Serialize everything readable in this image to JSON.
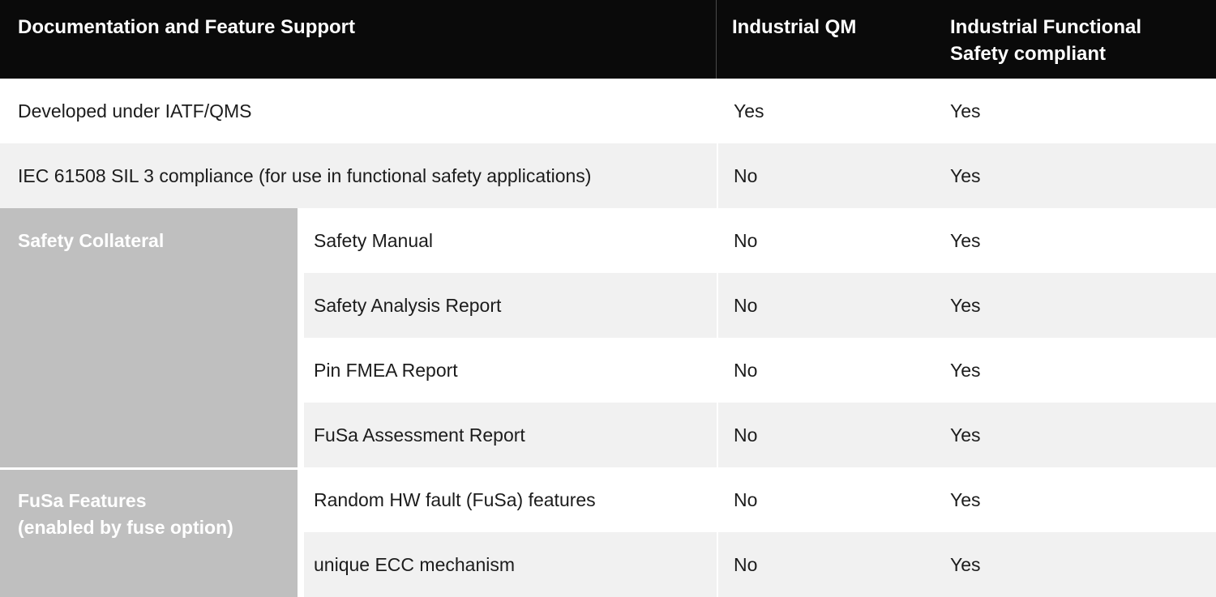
{
  "header": {
    "feature_col": "Documentation and Feature Support",
    "qm_col": "Industrial QM",
    "fusa_col_lines": [
      "Industrial Functional",
      "Safety compliant"
    ]
  },
  "rows": [
    {
      "label": "Developed under IATF/QMS",
      "industrial_qm": "Yes",
      "fusa_compliant": "Yes"
    },
    {
      "label": "IEC 61508 SIL 3 compliance (for use in functional safety applications)",
      "industrial_qm": "No",
      "fusa_compliant": "Yes"
    }
  ],
  "groups": [
    {
      "label_lines": [
        "Safety Collateral"
      ],
      "rows": [
        {
          "label": "Safety Manual",
          "industrial_qm": "No",
          "fusa_compliant": "Yes"
        },
        {
          "label": "Safety Analysis Report",
          "industrial_qm": "No",
          "fusa_compliant": "Yes"
        },
        {
          "label": "Pin FMEA Report",
          "industrial_qm": "No",
          "fusa_compliant": "Yes"
        },
        {
          "label": "FuSa Assessment Report",
          "industrial_qm": "No",
          "fusa_compliant": "Yes"
        }
      ]
    },
    {
      "label_lines": [
        "FuSa Features",
        "(enabled by fuse option)"
      ],
      "rows": [
        {
          "label": "Random HW fault (FuSa) features",
          "industrial_qm": "No",
          "fusa_compliant": "Yes"
        },
        {
          "label": "unique ECC mechanism",
          "industrial_qm": "No",
          "fusa_compliant": "Yes"
        }
      ]
    }
  ],
  "colors": {
    "header_bg": "#0a0a0a",
    "header_text": "#ffffff",
    "header_divider": "#4a4a4a",
    "row_white": "#ffffff",
    "row_stripe": "#f1f1f1",
    "group_bg": "#bfbfbf",
    "group_text": "#ffffff",
    "body_text": "#1c1c1c"
  }
}
